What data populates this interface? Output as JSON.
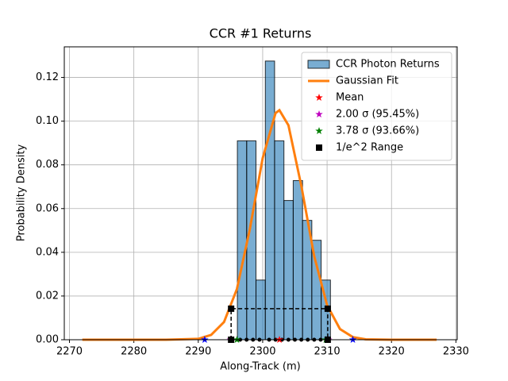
{
  "chart_data": {
    "type": "histogram",
    "title": "CCR #1 Returns",
    "x_label": "Along-Track (m)",
    "y_label": "Probability Density",
    "xlim": [
      2269.2,
      2330.2
    ],
    "ylim": [
      0,
      0.134
    ],
    "xticks": [
      2270,
      2280,
      2290,
      2300,
      2310,
      2320,
      2330
    ],
    "yticks": [
      {
        "value": 0,
        "label": "0.00"
      },
      0.02,
      0.04,
      0.06,
      0.08,
      {
        "value": 0.1,
        "label": "0.10"
      },
      0.12
    ],
    "grid": true,
    "legend": "upper right",
    "bins": [
      2296.07,
      2297.52,
      2298.96,
      2300.41,
      2301.85,
      2303.3,
      2304.74,
      2306.19,
      2307.63,
      2309.08,
      2310.52
    ],
    "series": [
      {
        "name": "CCR Photon Returns",
        "color": "#1f77b4",
        "values": [
          0.091,
          0.091,
          0.0273,
          0.1275,
          0.091,
          0.0637,
          0.0728,
          0.0546,
          0.0455,
          0.0273
        ]
      }
    ],
    "lines": [
      {
        "name": "Gaussian Fit",
        "color": "#ff7f0e",
        "x": [
          2272,
          2285,
          2290,
          2292,
          2294,
          2296,
          2298,
          2300,
          2302,
          2302.6,
          2304,
          2306,
          2308,
          2310,
          2312,
          2314,
          2316,
          2320,
          2327
        ],
        "values": [
          0,
          0,
          0.0004,
          0.0022,
          0.0081,
          0.0232,
          0.0505,
          0.0831,
          0.1037,
          0.105,
          0.0981,
          0.0704,
          0.0382,
          0.0158,
          0.0049,
          0.0012,
          0.0002,
          0,
          0
        ]
      }
    ],
    "markers": [
      {
        "color": "#000000",
        "marker": "dot",
        "x": [
          2296.5,
          2297.5,
          2298.5,
          2299.5,
          2301,
          2302,
          2303,
          2304,
          2305,
          2306,
          2307,
          2308,
          2309,
          2310
        ],
        "values": [
          0,
          0,
          0,
          0,
          0,
          0,
          0,
          0,
          0,
          0,
          0,
          0,
          0,
          0
        ]
      },
      {
        "color": "#0000ff",
        "marker": "star",
        "x": [
          2291,
          2314
        ],
        "values": [
          0,
          0
        ]
      },
      {
        "name": "Mean",
        "color": "#ff0000",
        "marker": "star",
        "x": [
          2302.6
        ],
        "values": [
          0
        ]
      },
      {
        "name": "2.00 σ (95.45%)",
        "color": "#bf00bf",
        "marker": "star",
        "x": [
          2295,
          2310.2
        ],
        "values": [
          0,
          0
        ]
      },
      {
        "name": "3.78 σ (93.66%)",
        "color": "#008000",
        "marker": "star",
        "x": [
          2296,
          2309.8
        ],
        "values": [
          0,
          0
        ]
      },
      {
        "name": "1/e^2 Range",
        "color": "#000000",
        "marker": "square",
        "line": "dashed",
        "x": [
          2295.1,
          2295.1,
          2310.1,
          2310.1
        ],
        "values": [
          0,
          0.0142,
          0.0142,
          0
        ]
      }
    ]
  }
}
